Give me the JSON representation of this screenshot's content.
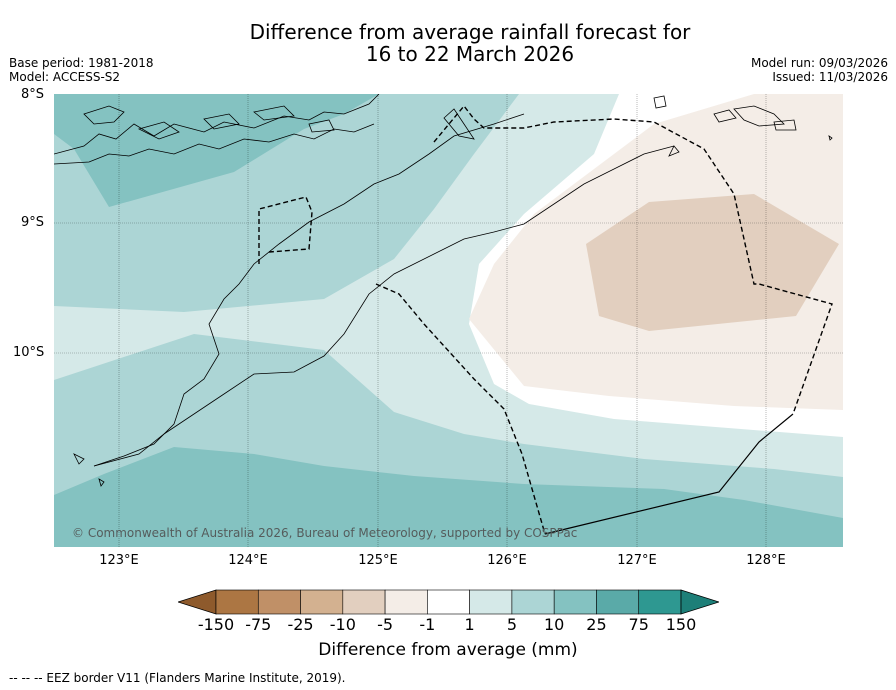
{
  "title_line1": "Difference from average rainfall forecast for",
  "title_line2": "16 to 22 March 2026",
  "base_period": "Base period: 1981-2018",
  "model": "Model: ACCESS-S2",
  "model_run": "Model run: 09/03/2026",
  "issued": "Issued: 11/03/2026",
  "latitude_labels": [
    "8°S",
    "9°S",
    "10°S"
  ],
  "longitude_labels": [
    "123°E",
    "124°E",
    "125°E",
    "126°E",
    "127°E",
    "128°E"
  ],
  "copyright": "© Commonwealth of Australia 2026, Bureau of Meteorology, supported by COSPPac",
  "colorbar": {
    "ticks": [
      "-150",
      "-75",
      "-25",
      "-10",
      "-5",
      "-1",
      "1",
      "5",
      "10",
      "25",
      "75",
      "150"
    ],
    "colors": [
      "#8e5a2c",
      "#ac7643",
      "#c09067",
      "#d3b190",
      "#e2cfbf",
      "#f4ede7",
      "#ffffff",
      "#d5e9e8",
      "#acd5d5",
      "#84c2c1",
      "#5aaaa8",
      "#2e9891",
      "#1d7f78"
    ],
    "label": "Difference from average (mm)"
  },
  "legend_note": "--  --  -- EEZ border V11 (Flanders Marine Institute, 2019).",
  "icons": {
    "coastline": "coastline-icon",
    "eez": "eez-border-icon"
  }
}
